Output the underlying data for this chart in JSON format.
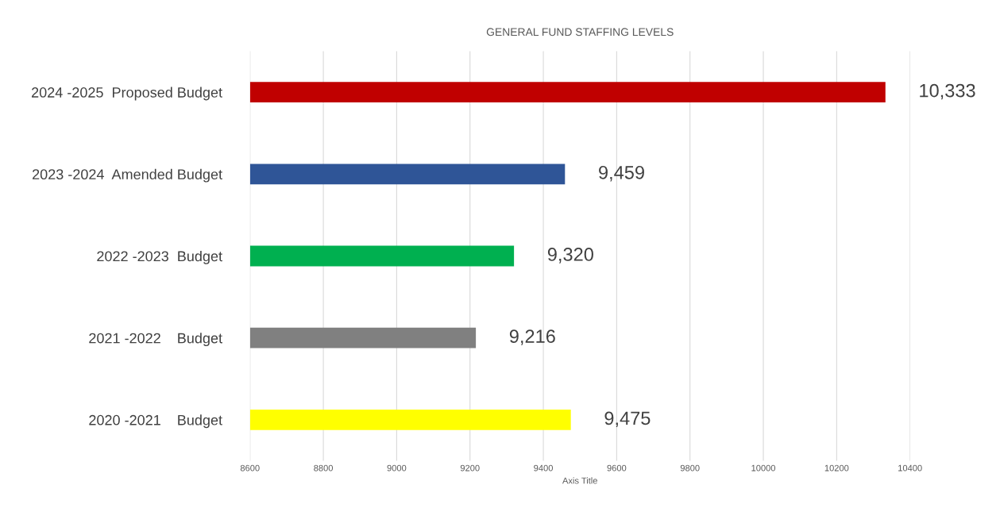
{
  "chart_data": {
    "type": "bar",
    "orientation": "horizontal",
    "title": "GENERAL FUND STAFFING LEVELS",
    "xlabel": "Axis Title",
    "categories": [
      "2024 -2025  Proposed Budget",
      "2023 -2024  Amended Budget",
      "2022 -2023  Budget",
      "2021 -2022    Budget",
      "2020 -2021    Budget"
    ],
    "values": [
      10333,
      9459,
      9320,
      9216,
      9475
    ],
    "value_labels": [
      "10,333",
      "9,459",
      "9,320",
      "9,216",
      "9,475"
    ],
    "colors": [
      "#c00000",
      "#2f5597",
      "#00b050",
      "#808080",
      "#ffff00"
    ],
    "xlim": [
      8600,
      10400
    ],
    "xticks": [
      8600,
      8800,
      9000,
      9200,
      9400,
      9600,
      9800,
      10000,
      10200,
      10400
    ],
    "grid": "x",
    "legend": false
  }
}
